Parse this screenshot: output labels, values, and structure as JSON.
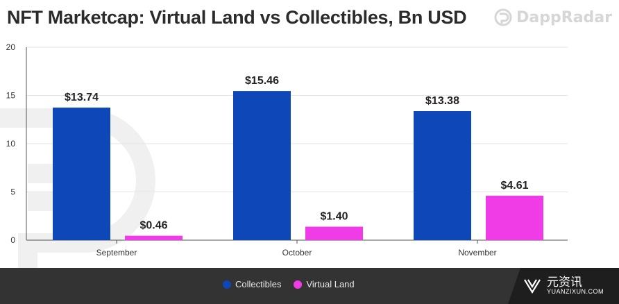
{
  "header": {
    "title": "NFT Marketcap: Virtual Land vs Collectibles, Bn USD",
    "brand": "DappRadar"
  },
  "colors": {
    "collectibles": "#0d47b8",
    "virtual_land": "#f03ce6",
    "grid": "#e3e3e3",
    "footer_bg": "#333333"
  },
  "chart_data": {
    "type": "bar",
    "categories": [
      "September",
      "October",
      "November"
    ],
    "series": [
      {
        "name": "Collectibles",
        "values": [
          13.74,
          15.46,
          13.38
        ],
        "labels": [
          "$13.74",
          "$15.46",
          "$13.38"
        ]
      },
      {
        "name": "Virtual Land",
        "values": [
          0.46,
          1.4,
          4.61
        ],
        "labels": [
          "$0.46",
          "$1.40",
          "$4.61"
        ]
      }
    ],
    "title": "NFT Marketcap: Virtual Land vs Collectibles, Bn USD",
    "xlabel": "",
    "ylabel": "",
    "ylim": [
      0,
      20
    ],
    "yticks": [
      "0",
      "5",
      "10",
      "15",
      "20"
    ],
    "grid": true,
    "legend": "bottom"
  },
  "footer": {
    "legend": [
      {
        "label": "Collectibles",
        "color": "#0d47b8"
      },
      {
        "label": "Virtual Land",
        "color": "#f03ce6"
      }
    ],
    "watermark_cn": "元资讯",
    "watermark_en": "YUANZIXUN.COM"
  }
}
